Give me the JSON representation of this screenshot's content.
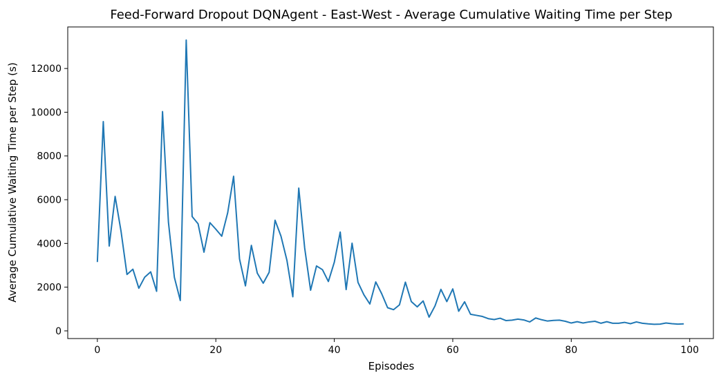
{
  "chart_data": {
    "type": "line",
    "title": "Feed-Forward Dropout DQNAgent - East-West - Average Cumulative Waiting Time per Step",
    "xlabel": "Episodes",
    "ylabel": "Average Cumulative Waiting Time per Step (s)",
    "xlim": [
      -5,
      104
    ],
    "ylim": [
      -350,
      13900
    ],
    "xticks": [
      0,
      20,
      40,
      60,
      80,
      100
    ],
    "yticks": [
      0,
      2000,
      4000,
      6000,
      8000,
      10000,
      12000
    ],
    "grid": false,
    "line_color": "#1f77b4",
    "series": [
      {
        "x": [
          0,
          1,
          2,
          3,
          4,
          5,
          6,
          7,
          8,
          9,
          10,
          11,
          12,
          13,
          14,
          15,
          16,
          17,
          18,
          19,
          20,
          21,
          22,
          23,
          24,
          25,
          26,
          27,
          28,
          29,
          30,
          31,
          32,
          33,
          34,
          35,
          36,
          37,
          38,
          39,
          40,
          41,
          42,
          43,
          44,
          45,
          46,
          47,
          48,
          49,
          50,
          51,
          52,
          53,
          54,
          55,
          56,
          57,
          58,
          59,
          60,
          61,
          62,
          63,
          64,
          65,
          66,
          67,
          68,
          69,
          70,
          71,
          72,
          73,
          74,
          75,
          76,
          77,
          78,
          79,
          80,
          81,
          82,
          83,
          84,
          85,
          86,
          87,
          88,
          89,
          90,
          91,
          92,
          93,
          94,
          95,
          96,
          97,
          98,
          99
        ],
        "values": [
          3150,
          9570,
          3880,
          6150,
          4550,
          2580,
          2820,
          1950,
          2460,
          2700,
          1810,
          10030,
          4970,
          2450,
          1390,
          13300,
          5230,
          4900,
          3600,
          4950,
          4650,
          4330,
          5400,
          7070,
          3290,
          2060,
          3910,
          2640,
          2180,
          2680,
          5060,
          4330,
          3230,
          1560,
          6530,
          3790,
          1860,
          2970,
          2800,
          2260,
          3140,
          4520,
          1890,
          4010,
          2220,
          1650,
          1230,
          2240,
          1700,
          1060,
          970,
          1190,
          2230,
          1340,
          1100,
          1370,
          630,
          1140,
          1900,
          1340,
          1920,
          900,
          1330,
          760,
          710,
          660,
          560,
          520,
          580,
          470,
          490,
          540,
          500,
          410,
          590,
          510,
          450,
          480,
          490,
          440,
          360,
          420,
          360,
          410,
          440,
          350,
          420,
          350,
          350,
          390,
          330,
          410,
          350,
          320,
          300,
          310,
          360,
          330,
          310,
          320
        ]
      }
    ]
  }
}
